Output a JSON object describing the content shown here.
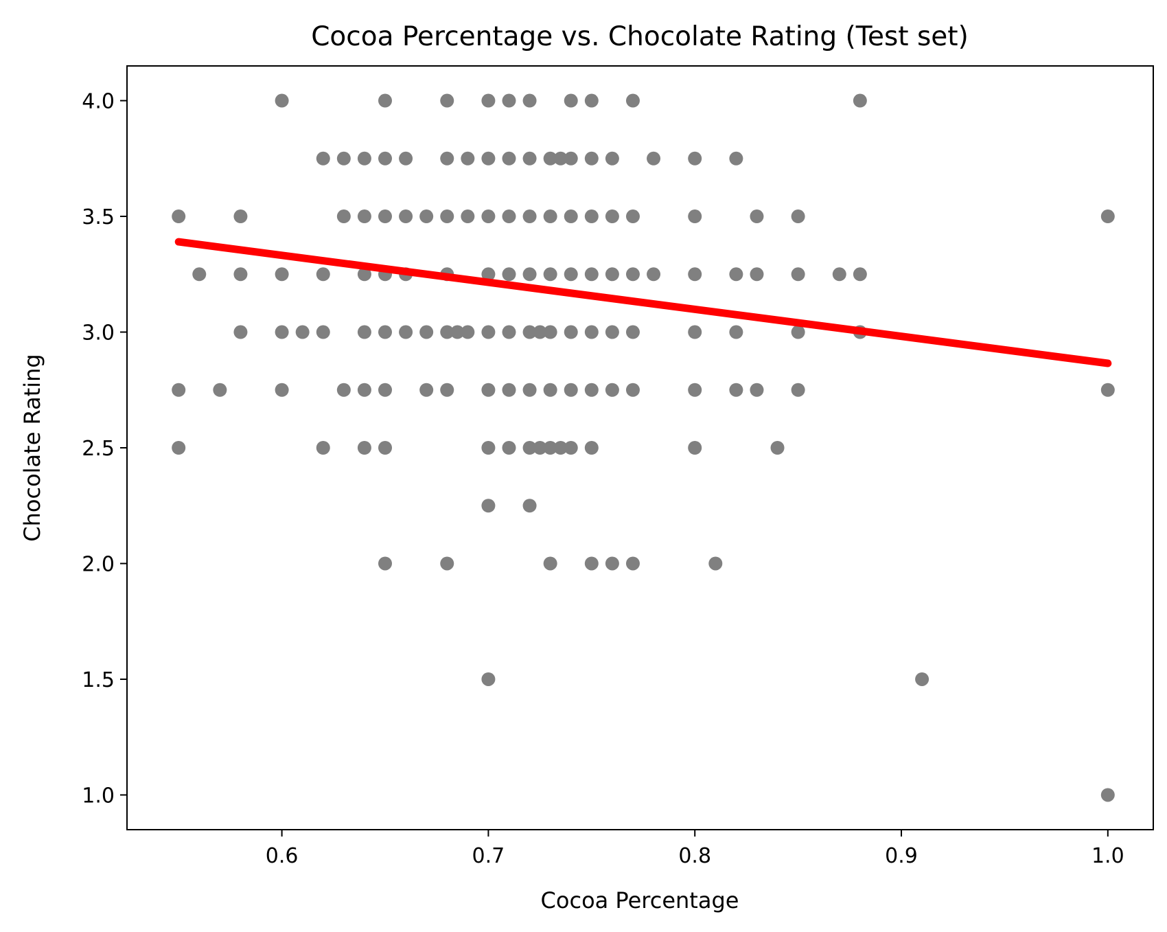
{
  "chart_data": {
    "type": "scatter",
    "title": "Cocoa Percentage vs. Chocolate Rating (Test set)",
    "xlabel": "Cocoa Percentage",
    "ylabel": "Chocolate Rating",
    "xlim": [
      0.525,
      1.022
    ],
    "ylim": [
      0.85,
      4.15
    ],
    "xticks": [
      0.6,
      0.7,
      0.8,
      0.9,
      1.0
    ],
    "xtick_labels": [
      "0.6",
      "0.7",
      "0.8",
      "0.9",
      "1.0"
    ],
    "yticks": [
      1.0,
      1.5,
      2.0,
      2.5,
      3.0,
      3.5,
      4.0
    ],
    "ytick_labels": [
      "1.0",
      "1.5",
      "2.0",
      "2.5",
      "3.0",
      "3.5",
      "4.0"
    ],
    "grid": false,
    "point_color": "#808080",
    "line_color": "#ff0000",
    "points": [
      [
        0.6,
        4.0
      ],
      [
        0.65,
        4.0
      ],
      [
        0.68,
        4.0
      ],
      [
        0.7,
        4.0
      ],
      [
        0.71,
        4.0
      ],
      [
        0.72,
        4.0
      ],
      [
        0.74,
        4.0
      ],
      [
        0.75,
        4.0
      ],
      [
        0.77,
        4.0
      ],
      [
        0.88,
        4.0
      ],
      [
        0.62,
        3.75
      ],
      [
        0.63,
        3.75
      ],
      [
        0.64,
        3.75
      ],
      [
        0.65,
        3.75
      ],
      [
        0.66,
        3.75
      ],
      [
        0.68,
        3.75
      ],
      [
        0.69,
        3.75
      ],
      [
        0.7,
        3.75
      ],
      [
        0.71,
        3.75
      ],
      [
        0.72,
        3.75
      ],
      [
        0.73,
        3.75
      ],
      [
        0.735,
        3.75
      ],
      [
        0.74,
        3.75
      ],
      [
        0.75,
        3.75
      ],
      [
        0.76,
        3.75
      ],
      [
        0.78,
        3.75
      ],
      [
        0.8,
        3.75
      ],
      [
        0.82,
        3.75
      ],
      [
        0.55,
        3.5
      ],
      [
        0.58,
        3.5
      ],
      [
        0.63,
        3.5
      ],
      [
        0.64,
        3.5
      ],
      [
        0.65,
        3.5
      ],
      [
        0.66,
        3.5
      ],
      [
        0.67,
        3.5
      ],
      [
        0.68,
        3.5
      ],
      [
        0.69,
        3.5
      ],
      [
        0.7,
        3.5
      ],
      [
        0.71,
        3.5
      ],
      [
        0.72,
        3.5
      ],
      [
        0.73,
        3.5
      ],
      [
        0.74,
        3.5
      ],
      [
        0.75,
        3.5
      ],
      [
        0.76,
        3.5
      ],
      [
        0.77,
        3.5
      ],
      [
        0.8,
        3.5
      ],
      [
        0.83,
        3.5
      ],
      [
        0.85,
        3.5
      ],
      [
        1.0,
        3.5
      ],
      [
        0.56,
        3.25
      ],
      [
        0.58,
        3.25
      ],
      [
        0.6,
        3.25
      ],
      [
        0.62,
        3.25
      ],
      [
        0.64,
        3.25
      ],
      [
        0.65,
        3.25
      ],
      [
        0.66,
        3.25
      ],
      [
        0.68,
        3.25
      ],
      [
        0.7,
        3.25
      ],
      [
        0.71,
        3.25
      ],
      [
        0.72,
        3.25
      ],
      [
        0.73,
        3.25
      ],
      [
        0.74,
        3.25
      ],
      [
        0.75,
        3.25
      ],
      [
        0.76,
        3.25
      ],
      [
        0.77,
        3.25
      ],
      [
        0.78,
        3.25
      ],
      [
        0.8,
        3.25
      ],
      [
        0.82,
        3.25
      ],
      [
        0.83,
        3.25
      ],
      [
        0.85,
        3.25
      ],
      [
        0.87,
        3.25
      ],
      [
        0.88,
        3.25
      ],
      [
        0.58,
        3.0
      ],
      [
        0.6,
        3.0
      ],
      [
        0.61,
        3.0
      ],
      [
        0.62,
        3.0
      ],
      [
        0.64,
        3.0
      ],
      [
        0.65,
        3.0
      ],
      [
        0.66,
        3.0
      ],
      [
        0.67,
        3.0
      ],
      [
        0.68,
        3.0
      ],
      [
        0.685,
        3.0
      ],
      [
        0.69,
        3.0
      ],
      [
        0.7,
        3.0
      ],
      [
        0.71,
        3.0
      ],
      [
        0.72,
        3.0
      ],
      [
        0.725,
        3.0
      ],
      [
        0.73,
        3.0
      ],
      [
        0.74,
        3.0
      ],
      [
        0.75,
        3.0
      ],
      [
        0.76,
        3.0
      ],
      [
        0.77,
        3.0
      ],
      [
        0.8,
        3.0
      ],
      [
        0.82,
        3.0
      ],
      [
        0.85,
        3.0
      ],
      [
        0.88,
        3.0
      ],
      [
        0.55,
        2.75
      ],
      [
        0.57,
        2.75
      ],
      [
        0.6,
        2.75
      ],
      [
        0.63,
        2.75
      ],
      [
        0.64,
        2.75
      ],
      [
        0.65,
        2.75
      ],
      [
        0.67,
        2.75
      ],
      [
        0.68,
        2.75
      ],
      [
        0.7,
        2.75
      ],
      [
        0.71,
        2.75
      ],
      [
        0.72,
        2.75
      ],
      [
        0.73,
        2.75
      ],
      [
        0.74,
        2.75
      ],
      [
        0.75,
        2.75
      ],
      [
        0.76,
        2.75
      ],
      [
        0.77,
        2.75
      ],
      [
        0.8,
        2.75
      ],
      [
        0.82,
        2.75
      ],
      [
        0.83,
        2.75
      ],
      [
        0.85,
        2.75
      ],
      [
        1.0,
        2.75
      ],
      [
        0.55,
        2.5
      ],
      [
        0.62,
        2.5
      ],
      [
        0.64,
        2.5
      ],
      [
        0.65,
        2.5
      ],
      [
        0.7,
        2.5
      ],
      [
        0.71,
        2.5
      ],
      [
        0.72,
        2.5
      ],
      [
        0.725,
        2.5
      ],
      [
        0.73,
        2.5
      ],
      [
        0.735,
        2.5
      ],
      [
        0.74,
        2.5
      ],
      [
        0.75,
        2.5
      ],
      [
        0.8,
        2.5
      ],
      [
        0.84,
        2.5
      ],
      [
        0.7,
        2.25
      ],
      [
        0.72,
        2.25
      ],
      [
        0.65,
        2.0
      ],
      [
        0.68,
        2.0
      ],
      [
        0.73,
        2.0
      ],
      [
        0.75,
        2.0
      ],
      [
        0.76,
        2.0
      ],
      [
        0.77,
        2.0
      ],
      [
        0.81,
        2.0
      ],
      [
        0.7,
        1.5
      ],
      [
        0.91,
        1.5
      ],
      [
        1.0,
        1.0
      ]
    ],
    "regression_line": {
      "x": [
        0.55,
        1.0
      ],
      "y": [
        3.39,
        2.865
      ]
    }
  }
}
